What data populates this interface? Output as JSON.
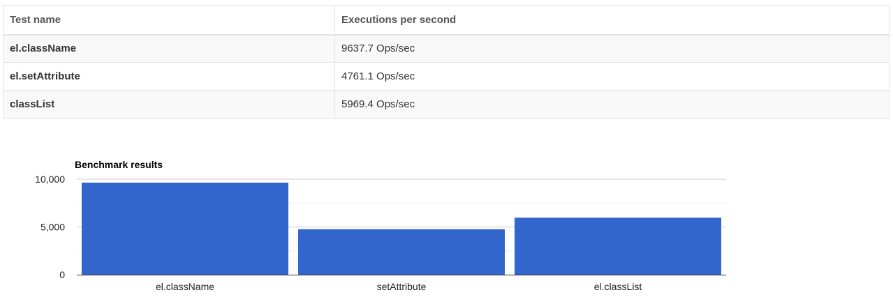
{
  "table": {
    "headers": [
      "Test name",
      "Executions per second"
    ],
    "rows": [
      {
        "name": "el.className",
        "value": "9637.7 Ops/sec"
      },
      {
        "name": "el.setAttribute",
        "value": "4761.1 Ops/sec"
      },
      {
        "name": "classList",
        "value": "5969.4 Ops/sec"
      }
    ]
  },
  "chart_data": {
    "type": "bar",
    "title": "Benchmark results",
    "categories": [
      "el.className",
      "setAttribute",
      "el.classList"
    ],
    "values": [
      9637.7,
      4761.1,
      5969.4
    ],
    "ylim": [
      0,
      10000
    ],
    "yticks": [
      0,
      5000,
      10000
    ],
    "ytick_labels": [
      "0",
      "5,000",
      "10,000"
    ],
    "bar_color": "#3366cc",
    "grid": true,
    "legend": "none"
  }
}
